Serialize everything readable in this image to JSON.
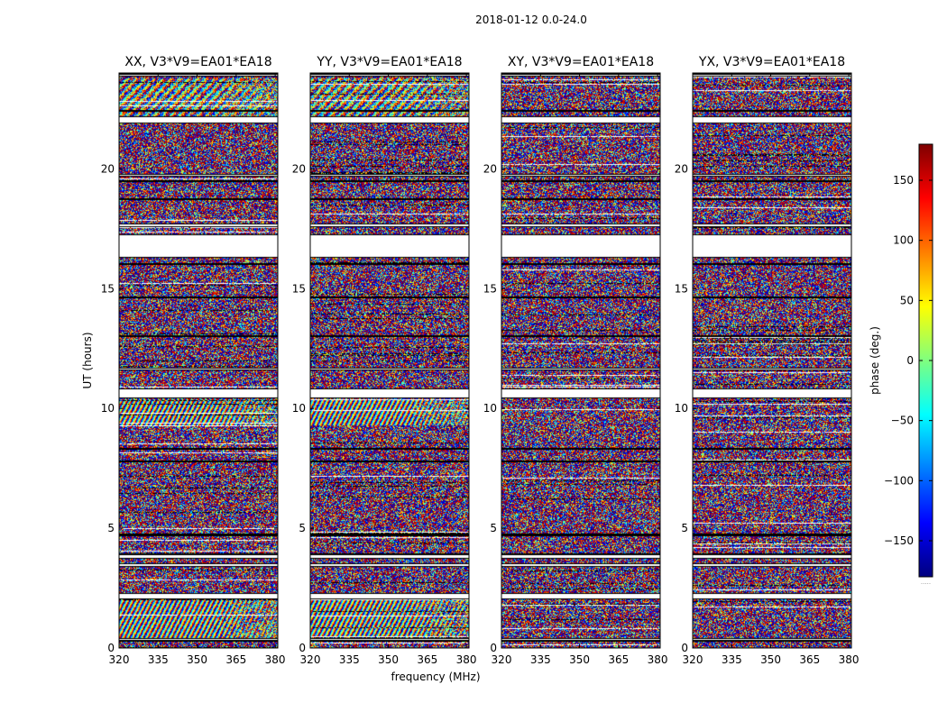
{
  "chart_data": {
    "type": "heatmap",
    "title": "2018-01-12 0.0-24.0",
    "xlabel": "frequency (MHz)",
    "ylabel": "UT (hours)",
    "xlim": [
      320,
      381
    ],
    "ylim": [
      0,
      24
    ],
    "x_ticks": [
      320,
      335,
      350,
      365,
      380
    ],
    "y_ticks": [
      0,
      5,
      10,
      15,
      20
    ],
    "colorbar": {
      "label": "phase (deg.)",
      "range": [
        -180,
        180
      ],
      "ticks": [
        150,
        100,
        50,
        0,
        -50,
        -100,
        -150
      ],
      "tick_labels": [
        "150",
        "100",
        "50",
        "0",
        "−50",
        "−100",
        "−150"
      ],
      "colormap": "jet",
      "colors": [
        "#00007f",
        "#0000ff",
        "#007fff",
        "#00ffff",
        "#7fff7f",
        "#ffff00",
        "#ff7f00",
        "#ff0000",
        "#7f0000"
      ],
      "footnote": "....."
    },
    "gap_color": "#ffffff",
    "panels": [
      {
        "title": "XX, V3*V9=EA01*EA18",
        "fringe_rows": [
          [
            0.4,
            2.05,
            "strong"
          ],
          [
            9.3,
            10.4,
            "strong"
          ],
          [
            22.2,
            23.8,
            "medium"
          ]
        ]
      },
      {
        "title": "YY, V3*V9=EA01*EA18",
        "fringe_rows": [
          [
            0.4,
            2.05,
            "strong"
          ],
          [
            9.3,
            10.4,
            "strong"
          ],
          [
            22.2,
            23.8,
            "medium"
          ]
        ]
      },
      {
        "title": "XY, V3*V9=EA01*EA18",
        "fringe_rows": []
      },
      {
        "title": "YX, V3*V9=EA01*EA18",
        "fringe_rows": []
      }
    ],
    "flagged_time_ranges": [
      [
        0.3,
        0.45
      ],
      [
        2.05,
        2.3
      ],
      [
        3.4,
        3.55
      ],
      [
        3.75,
        3.95
      ],
      [
        4.7,
        4.78
      ],
      [
        7.75,
        7.85
      ],
      [
        8.3,
        8.37
      ],
      [
        10.45,
        10.85
      ],
      [
        11.6,
        11.72
      ],
      [
        13.0,
        13.08
      ],
      [
        14.6,
        14.68
      ],
      [
        16.0,
        16.1
      ],
      [
        16.3,
        17.3
      ],
      [
        17.6,
        17.75
      ],
      [
        18.7,
        18.78
      ],
      [
        19.45,
        19.55
      ],
      [
        19.7,
        19.82
      ],
      [
        21.9,
        22.2
      ],
      [
        22.4,
        22.48
      ],
      [
        23.85,
        24.0
      ]
    ]
  }
}
